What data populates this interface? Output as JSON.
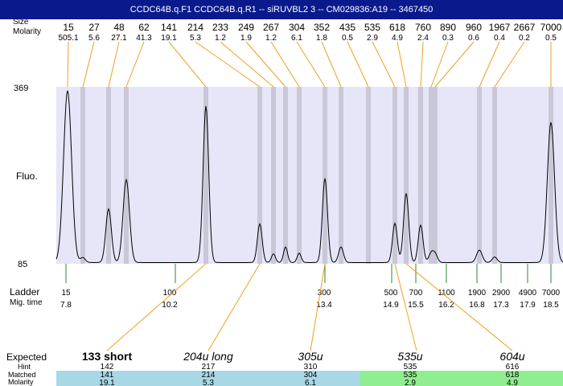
{
  "title": "CCDC64B.q.F1  CCDC64B.q.R1 -- siRUVBL2 3 -- CM029836:A19 -- 3467450",
  "labels": {
    "peak_size": "Size",
    "molarity": "Molarity",
    "y_top": "369",
    "y_bottom": "85",
    "fluo": "Fluo.",
    "ladder": "Ladder",
    "mig_time": "Mig. time",
    "expected": "Expected",
    "hint": "Hint",
    "matched": "Matched",
    "molarity_row": "Molarity"
  },
  "chart_data": {
    "type": "line",
    "ylim": [
      85,
      369
    ],
    "ylabel": "Fluo.",
    "peaks": [
      {
        "size": "15",
        "molarity": "505.1"
      },
      {
        "size": "27",
        "molarity": "5.6"
      },
      {
        "size": "48",
        "molarity": "27.1"
      },
      {
        "size": "62",
        "molarity": "41.3"
      },
      {
        "size": "141",
        "molarity": "19.1"
      },
      {
        "size": "214",
        "molarity": "5.3"
      },
      {
        "size": "233",
        "molarity": "1.2"
      },
      {
        "size": "249",
        "molarity": "1.9"
      },
      {
        "size": "267",
        "molarity": "1.2"
      },
      {
        "size": "304",
        "molarity": "6.1"
      },
      {
        "size": "352",
        "molarity": "1.8"
      },
      {
        "size": "435",
        "molarity": "0.5"
      },
      {
        "size": "535",
        "molarity": "2.9"
      },
      {
        "size": "618",
        "molarity": "4.9"
      },
      {
        "size": "760",
        "molarity": "2.4"
      },
      {
        "size": "890",
        "molarity": "0.3"
      },
      {
        "size": "960",
        "molarity": "0.6"
      },
      {
        "size": "1967",
        "molarity": "0.4"
      },
      {
        "size": "2667",
        "molarity": "0.2"
      },
      {
        "size": "7000",
        "molarity": "0.5"
      }
    ],
    "ladder": [
      {
        "size": "15",
        "time": "7.8"
      },
      {
        "size": "100",
        "time": "10.2"
      },
      {
        "size": "300",
        "time": "13.4"
      },
      {
        "size": "500",
        "time": "14.9"
      },
      {
        "size": "700",
        "time": "15.5"
      },
      {
        "size": "1100",
        "time": "16.2"
      },
      {
        "size": "1900",
        "time": "16.8"
      },
      {
        "size": "2900",
        "time": "17.3"
      },
      {
        "size": "4900",
        "time": "17.9"
      },
      {
        "size": "7000",
        "time": "18.5"
      }
    ],
    "expected": [
      {
        "label": "133 short",
        "hint": "142",
        "matched": "141",
        "molarity": "19.1"
      },
      {
        "label": "204u long",
        "hint": "217",
        "matched": "214",
        "molarity": "5.3"
      },
      {
        "label": "305u",
        "hint": "310",
        "matched": "304",
        "molarity": "6.1"
      },
      {
        "label": "535u",
        "hint": "535",
        "matched": "535",
        "molarity": "2.9"
      },
      {
        "label": "604u",
        "hint": "616",
        "matched": "618",
        "molarity": "4.9"
      }
    ],
    "colors": {
      "title_bg": "#0a1a8c",
      "plot_bg": "#e6e6f8",
      "band": "#c8c8d8",
      "connector": "#f0a020",
      "ladder_tick": "#2a8a2a",
      "matched_blue": "#a8d8e6",
      "matched_green": "#90ee90"
    }
  }
}
